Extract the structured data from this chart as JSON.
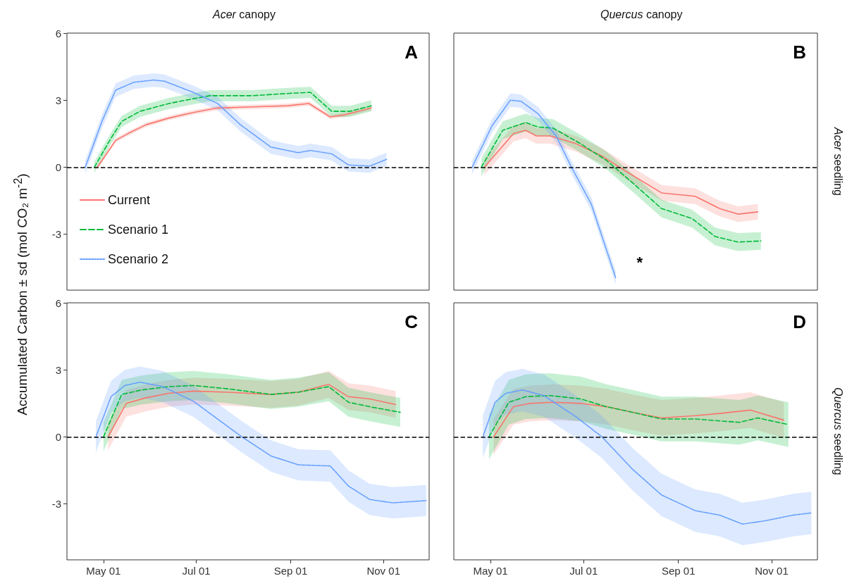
{
  "chart_data": [
    {
      "type": "line",
      "title": "Acer canopy",
      "ylabel": "Accumulated Carbon ± sd (mol CO₂ m$^{-2}$)",
      "annotations": [
        "A"
      ],
      "legend": "left",
      "tick_labels": "y",
      "xlim": [
        "--04-07",
        "--12-01"
      ],
      "xticks": [
        {
          "value": "--05-01",
          "label": "May 01"
        },
        {
          "value": "--07-01",
          "label": "Jul 01"
        },
        {
          "value": "--09-01",
          "label": "Sep 01"
        },
        {
          "value": "--11-01",
          "label": "Nov 01"
        }
      ],
      "ylim": [
        -5.5,
        6
      ],
      "yticks": [
        -3,
        0,
        3,
        6
      ],
      "ref_lines": [
        {
          "axis": "y",
          "value": 0,
          "color": "#000000",
          "line_style": "dashed"
        }
      ],
      "series": [
        {
          "name": "Current",
          "color": "#f8766d",
          "line_style": "solid",
          "x": [
            "--04-27",
            "--05-09",
            "--05-17",
            "--05-29",
            "--06-13",
            "--06-29",
            "--07-15",
            "--08-07",
            "--08-30",
            "--09-13",
            "--09-27",
            "--10-07",
            "--10-24"
          ],
          "values": [
            0,
            1.2,
            1.5,
            1.9,
            2.2,
            2.45,
            2.65,
            2.7,
            2.75,
            2.85,
            2.25,
            2.35,
            2.65
          ],
          "lower": [
            -0.1,
            1.1,
            1.4,
            1.8,
            2.1,
            2.35,
            2.55,
            2.6,
            2.65,
            2.75,
            2.15,
            2.25,
            2.55
          ],
          "upper": [
            0.1,
            1.3,
            1.6,
            2.0,
            2.3,
            2.55,
            2.75,
            2.8,
            2.85,
            2.95,
            2.35,
            2.45,
            2.75
          ]
        },
        {
          "name": "Scenario 1",
          "color": "#00ba38",
          "line_style": "dashed",
          "x": [
            "--04-25",
            "--05-06",
            "--05-13",
            "--05-25",
            "--06-13",
            "--06-24",
            "--07-10",
            "--08-07",
            "--08-30",
            "--09-14",
            "--09-28",
            "--10-10",
            "--10-24"
          ],
          "values": [
            0,
            1.3,
            2.05,
            2.5,
            2.85,
            3.0,
            3.2,
            3.2,
            3.3,
            3.35,
            2.5,
            2.5,
            2.75
          ],
          "lower": [
            -0.25,
            1.05,
            1.8,
            2.25,
            2.6,
            2.75,
            2.95,
            2.95,
            3.05,
            3.1,
            2.25,
            2.25,
            2.5
          ],
          "upper": [
            0.25,
            1.55,
            2.3,
            2.75,
            3.1,
            3.25,
            3.45,
            3.45,
            3.55,
            3.6,
            2.75,
            2.75,
            3.0
          ]
        },
        {
          "name": "Scenario 2",
          "color": "#619cff",
          "line_style": "dotted",
          "x": [
            "--04-19",
            "--04-30",
            "--05-09",
            "--05-21",
            "--06-03",
            "--06-10",
            "--06-29",
            "--07-15",
            "--07-30",
            "--08-19",
            "--09-06",
            "--09-14",
            "--09-28",
            "--10-09",
            "--10-23",
            "--11-03"
          ],
          "values": [
            0,
            2.05,
            3.45,
            3.8,
            3.9,
            3.85,
            3.35,
            2.85,
            1.9,
            0.9,
            0.65,
            0.75,
            0.6,
            0.1,
            0.05,
            0.35
          ],
          "lower": [
            -0.3,
            1.75,
            3.15,
            3.5,
            3.6,
            3.55,
            3.05,
            2.55,
            1.6,
            0.6,
            0.35,
            0.45,
            0.3,
            -0.2,
            -0.25,
            0.05
          ],
          "upper": [
            0.3,
            2.35,
            3.75,
            4.1,
            4.2,
            4.15,
            3.65,
            3.15,
            2.2,
            1.2,
            0.95,
            1.05,
            0.9,
            0.4,
            0.35,
            0.65
          ]
        }
      ]
    },
    {
      "type": "line",
      "title": "Quercus canopy",
      "y2label": "Acer seedling",
      "annotations": [
        "B",
        "*"
      ],
      "tick_labels": false,
      "xlim": [
        "--04-07",
        "--12-01"
      ],
      "xticks": [
        {
          "value": "--05-01",
          "label": "May 01"
        },
        {
          "value": "--07-01",
          "label": "Jul 01"
        },
        {
          "value": "--09-01",
          "label": "Sep 01"
        },
        {
          "value": "--11-01",
          "label": "Nov 01"
        }
      ],
      "ylim": [
        -5.5,
        6
      ],
      "yticks": [
        -3,
        0,
        3,
        6
      ],
      "ref_lines": [
        {
          "axis": "y",
          "value": 0,
          "color": "#000000",
          "line_style": "dashed"
        }
      ],
      "series": [
        {
          "color": "#f8766d",
          "line_style": "solid",
          "x": [
            "--04-27",
            "--05-16",
            "--05-24",
            "--05-31",
            "--06-09",
            "--06-26",
            "--07-13",
            "--07-29",
            "--08-21",
            "--09-12",
            "--09-28",
            "--10-10",
            "--10-23"
          ],
          "values": [
            0,
            1.5,
            1.65,
            1.4,
            1.4,
            1.05,
            0.5,
            -0.2,
            -1.15,
            -1.3,
            -1.85,
            -2.1,
            -2.0
          ],
          "lower": [
            -0.35,
            1.15,
            1.3,
            1.05,
            1.05,
            0.7,
            0.15,
            -0.55,
            -1.5,
            -1.65,
            -2.2,
            -2.45,
            -2.35
          ],
          "upper": [
            0.35,
            1.85,
            2.0,
            1.75,
            1.75,
            1.4,
            0.85,
            0.15,
            -0.8,
            -0.95,
            -1.5,
            -1.75,
            -1.65
          ]
        },
        {
          "color": "#00ba38",
          "line_style": "dashed",
          "x": [
            "--04-25",
            "--05-09",
            "--05-24",
            "--06-01",
            "--06-11",
            "--06-29",
            "--07-16",
            "--08-02",
            "--08-21",
            "--09-10",
            "--09-25",
            "--10-10",
            "--10-25"
          ],
          "values": [
            0,
            1.65,
            2.0,
            1.8,
            1.75,
            1.05,
            0.3,
            -0.7,
            -1.85,
            -2.3,
            -3.1,
            -3.35,
            -3.3
          ],
          "lower": [
            -0.4,
            1.25,
            1.6,
            1.4,
            1.35,
            0.65,
            -0.1,
            -1.1,
            -2.25,
            -2.7,
            -3.5,
            -3.75,
            -3.7
          ],
          "upper": [
            0.4,
            2.05,
            2.4,
            2.2,
            2.15,
            1.45,
            0.7,
            -0.3,
            -1.45,
            -1.9,
            -2.7,
            -2.95,
            -2.9
          ]
        },
        {
          "color": "#619cff",
          "line_style": "dotted",
          "x": [
            "--04-19",
            "--05-02",
            "--05-14",
            "--05-21",
            "--06-01",
            "--06-13",
            "--06-23",
            "--07-06",
            "--07-22"
          ],
          "values": [
            0,
            1.85,
            3.0,
            2.95,
            2.4,
            1.4,
            0,
            -1.65,
            -4.95
          ],
          "lower": [
            -0.3,
            1.55,
            2.7,
            2.65,
            2.1,
            1.1,
            -0.3,
            -1.95,
            -5.25
          ],
          "upper": [
            0.3,
            2.15,
            3.3,
            3.25,
            2.7,
            1.7,
            0.3,
            -1.35,
            -4.65
          ]
        }
      ]
    },
    {
      "type": "line",
      "annotations": [
        "C"
      ],
      "xlim": [
        "--04-07",
        "--12-01"
      ],
      "xticks": [
        {
          "value": "--05-01",
          "label": "May 01"
        },
        {
          "value": "--07-01",
          "label": "Jul 01"
        },
        {
          "value": "--09-01",
          "label": "Sep 01"
        },
        {
          "value": "--11-01",
          "label": "Nov 01"
        }
      ],
      "ylim": [
        -5.5,
        6
      ],
      "yticks": [
        -3,
        0,
        3,
        6
      ],
      "ref_lines": [
        {
          "axis": "y",
          "value": 0,
          "color": "#000000",
          "line_style": "dashed"
        }
      ],
      "series": [
        {
          "color": "#f8766d",
          "line_style": "solid",
          "x": [
            "--05-04",
            "--05-16",
            "--05-29",
            "--06-13",
            "--06-29",
            "--07-22",
            "--08-19",
            "--09-06",
            "--09-26",
            "--10-09",
            "--10-23",
            "--11-09"
          ],
          "values": [
            0,
            1.5,
            1.75,
            1.95,
            2.05,
            2.0,
            1.9,
            2.0,
            2.35,
            1.8,
            1.7,
            1.45
          ],
          "lower": [
            -0.6,
            0.9,
            1.15,
            1.35,
            1.45,
            1.4,
            1.3,
            1.4,
            1.75,
            1.2,
            1.1,
            0.85
          ],
          "upper": [
            0.6,
            2.1,
            2.35,
            2.55,
            2.65,
            2.6,
            2.5,
            2.6,
            2.95,
            2.4,
            2.3,
            2.05
          ]
        },
        {
          "color": "#00ba38",
          "line_style": "dashed",
          "x": [
            "--05-01",
            "--05-13",
            "--05-26",
            "--06-13",
            "--06-29",
            "--07-22",
            "--08-19",
            "--09-06",
            "--09-26",
            "--10-09",
            "--10-23",
            "--11-12"
          ],
          "values": [
            0,
            1.9,
            2.1,
            2.25,
            2.3,
            2.15,
            1.9,
            2.0,
            2.25,
            1.55,
            1.35,
            1.1
          ],
          "lower": [
            -0.65,
            1.25,
            1.45,
            1.6,
            1.65,
            1.5,
            1.25,
            1.35,
            1.6,
            0.9,
            0.7,
            0.45
          ],
          "upper": [
            0.65,
            2.55,
            2.75,
            2.9,
            2.95,
            2.8,
            2.55,
            2.65,
            2.9,
            2.2,
            2.0,
            1.75
          ]
        },
        {
          "color": "#619cff",
          "line_style": "dotted",
          "x": [
            "--04-26",
            "--05-06",
            "--05-15",
            "--05-25",
            "--06-09",
            "--06-29",
            "--07-16",
            "--07-31",
            "--08-19",
            "--09-06",
            "--09-27",
            "--10-09",
            "--10-23",
            "--11-07",
            "--11-29"
          ],
          "values": [
            0,
            1.8,
            2.3,
            2.45,
            2.25,
            1.6,
            0.75,
            0,
            -0.85,
            -1.25,
            -1.3,
            -2.2,
            -2.8,
            -2.95,
            -2.85
          ],
          "lower": [
            -0.7,
            1.1,
            1.6,
            1.75,
            1.55,
            0.9,
            0.05,
            -0.7,
            -1.55,
            -1.95,
            -2.0,
            -2.9,
            -3.5,
            -3.65,
            -3.55
          ],
          "upper": [
            0.7,
            2.5,
            3.0,
            3.15,
            2.95,
            2.3,
            1.45,
            0.7,
            -0.15,
            -0.55,
            -0.6,
            -1.5,
            -2.1,
            -2.25,
            -2.15
          ]
        }
      ]
    },
    {
      "type": "line",
      "y2label": "Quercus seedling",
      "annotations": [
        "D"
      ],
      "tick_labels": "x",
      "xlim": [
        "--04-07",
        "--12-01"
      ],
      "xticks": [
        {
          "value": "--05-01",
          "label": "May 01"
        },
        {
          "value": "--07-01",
          "label": "Jul 01"
        },
        {
          "value": "--09-01",
          "label": "Sep 01"
        },
        {
          "value": "--11-01",
          "label": "Nov 01"
        }
      ],
      "ylim": [
        -5.5,
        6
      ],
      "yticks": [
        -3,
        0,
        3,
        6
      ],
      "ref_lines": [
        {
          "axis": "y",
          "value": 0,
          "color": "#000000",
          "line_style": "dashed"
        }
      ],
      "series": [
        {
          "color": "#f8766d",
          "line_style": "solid",
          "x": [
            "--05-03",
            "--05-16",
            "--05-27",
            "--06-11",
            "--06-29",
            "--07-16",
            "--08-02",
            "--08-21",
            "--09-12",
            "--09-28",
            "--10-18",
            "--11-09"
          ],
          "values": [
            0,
            1.35,
            1.5,
            1.55,
            1.5,
            1.35,
            1.1,
            0.85,
            0.95,
            1.05,
            1.2,
            0.75
          ],
          "lower": [
            -0.8,
            0.55,
            0.7,
            0.75,
            0.7,
            0.55,
            0.3,
            0.05,
            0.15,
            0.25,
            0.4,
            -0.05
          ],
          "upper": [
            0.8,
            2.15,
            2.3,
            2.35,
            2.3,
            2.15,
            1.9,
            1.65,
            1.75,
            1.85,
            2.0,
            1.55
          ]
        },
        {
          "color": "#00ba38",
          "line_style": "dashed",
          "x": [
            "--04-30",
            "--05-13",
            "--05-24",
            "--06-09",
            "--06-29",
            "--07-16",
            "--08-02",
            "--08-21",
            "--09-12",
            "--10-11",
            "--10-23",
            "--11-12"
          ],
          "values": [
            0,
            1.55,
            1.8,
            1.85,
            1.7,
            1.35,
            1.1,
            0.8,
            0.8,
            0.65,
            0.85,
            0.55
          ],
          "lower": [
            -1,
            0.55,
            0.8,
            0.85,
            0.7,
            0.35,
            0.1,
            -0.2,
            -0.2,
            -0.35,
            -0.15,
            -0.45
          ],
          "upper": [
            1,
            2.55,
            2.8,
            2.85,
            2.7,
            2.35,
            2.1,
            1.8,
            1.8,
            1.65,
            1.85,
            1.55
          ]
        },
        {
          "color": "#619cff",
          "line_style": "dotted",
          "x": [
            "--04-26",
            "--05-04",
            "--05-11",
            "--05-22",
            "--06-05",
            "--06-26",
            "--07-13",
            "--08-02",
            "--08-21",
            "--09-12",
            "--09-28",
            "--10-13",
            "--10-28",
            "--11-15",
            "--11-27"
          ],
          "values": [
            0,
            1.55,
            1.95,
            2.1,
            1.85,
            0.9,
            0,
            -1.45,
            -2.6,
            -3.3,
            -3.5,
            -3.9,
            -3.75,
            -3.5,
            -3.4
          ],
          "lower": [
            -0.95,
            0.6,
            1.0,
            1.15,
            0.9,
            -0.05,
            -0.95,
            -2.4,
            -3.55,
            -4.25,
            -4.45,
            -4.85,
            -4.7,
            -4.45,
            -4.35
          ],
          "upper": [
            0.95,
            2.5,
            2.9,
            3.05,
            2.8,
            1.85,
            0.95,
            -0.5,
            -1.65,
            -2.35,
            -2.55,
            -2.95,
            -2.8,
            -2.55,
            -2.45
          ]
        }
      ]
    }
  ]
}
